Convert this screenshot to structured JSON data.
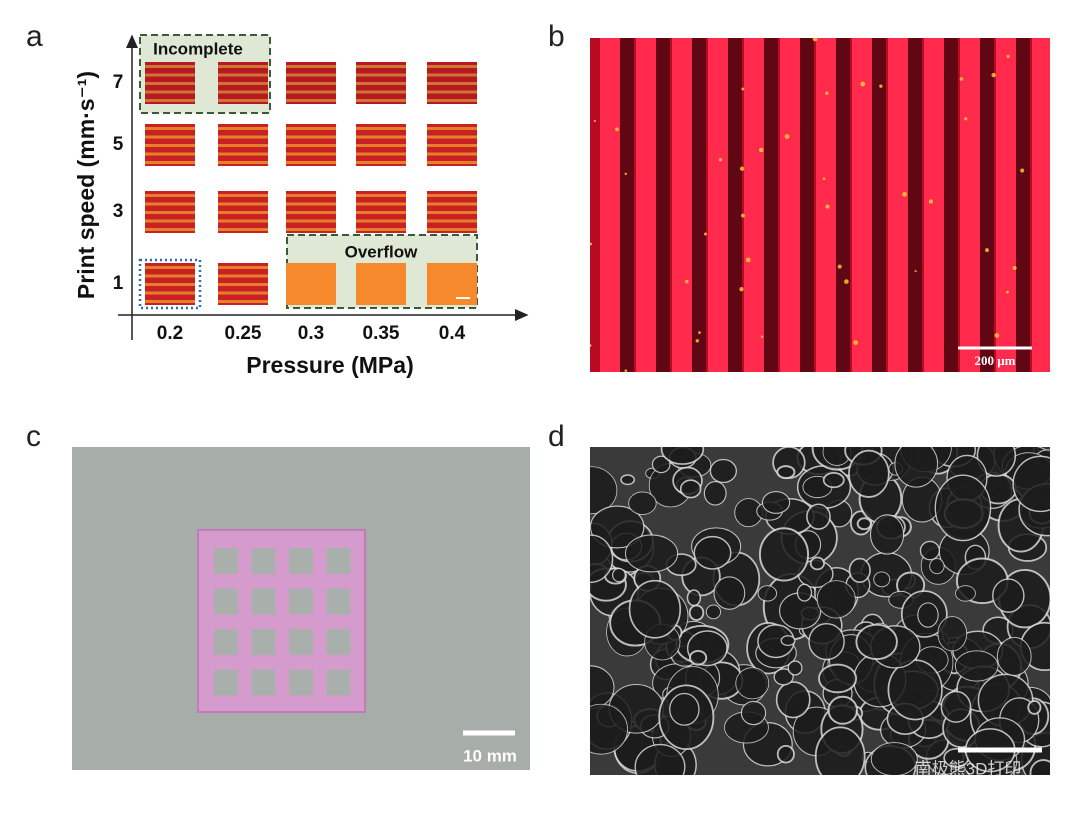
{
  "panels": {
    "a": {
      "label": "a",
      "incomplete": "Incomplete",
      "overflow": "Overflow",
      "y_label": "Print speed (mm·s⁻¹)",
      "y_ticks": [
        "7",
        "5",
        "3",
        "1"
      ],
      "x_label": "Pressure (MPa)",
      "x_ticks": [
        "0.2",
        "0.25",
        "0.3",
        "0.35",
        "0.4"
      ]
    },
    "b": {
      "label": "b",
      "scale_bar": "200 μm"
    },
    "c": {
      "label": "c",
      "scale_bar": "10 mm"
    },
    "d": {
      "label": "d",
      "watermark": "南极熊3D打印"
    }
  }
}
